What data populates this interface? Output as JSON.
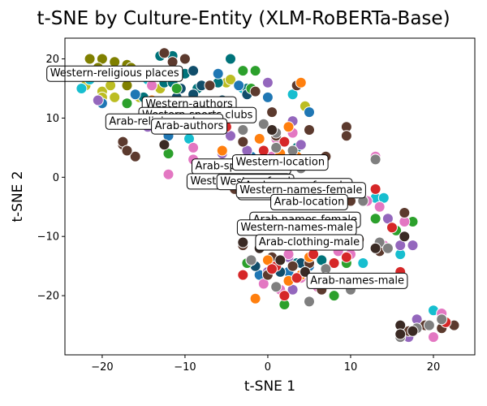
{
  "chart_data": {
    "type": "scatter",
    "title": "t-SNE by Culture-Entity (XLM-RoBERTa-Base)",
    "xlabel": "t-SNE 1",
    "ylabel": "t-SNE 2",
    "xlim": [
      -24.5,
      25
    ],
    "ylim": [
      -30,
      23.5
    ],
    "xticks": [
      -20,
      -10,
      0,
      10,
      20
    ],
    "yticks": [
      -20,
      -10,
      0,
      10,
      20
    ],
    "grid": false,
    "annotations": [
      {
        "text": "Western-religious places",
        "x": -18.5,
        "y": 17.5
      },
      {
        "text": "Western-authors",
        "x": -9.5,
        "y": 12.3
      },
      {
        "text": "Western-sports clubs",
        "x": -8.5,
        "y": 10.5
      },
      {
        "text": "Arab-religious places",
        "x": -12.5,
        "y": 9.4
      },
      {
        "text": "Arab-authors",
        "x": -9.5,
        "y": 8.6
      },
      {
        "text": "Arab-sports clubs",
        "x": -3.2,
        "y": 1.8
      },
      {
        "text": "Western-location",
        "x": 1.5,
        "y": 2.5
      },
      {
        "text": "Western-beverage",
        "x": -3.5,
        "y": -0.7
      },
      {
        "text": "Western-food",
        "x": -1.5,
        "y": -0.8
      },
      {
        "text": "Arab-names-female",
        "x": 3.5,
        "y": -1.5
      },
      {
        "text": "Arab-beverage",
        "x": 1.5,
        "y": -2.5
      },
      {
        "text": "Western-names-female",
        "x": 4.0,
        "y": -2.2
      },
      {
        "text": "Arab-location",
        "x": 5.0,
        "y": -4.2
      },
      {
        "text": "Arab-names-female",
        "x": 4.5,
        "y": -7.2
      },
      {
        "text": "Western-names-male",
        "x": 3.5,
        "y": -8.5
      },
      {
        "text": "Arab-clothing-male",
        "x": 5.0,
        "y": -11.0
      },
      {
        "text": "Arab-names-male",
        "x": 10.8,
        "y": -17.5
      }
    ],
    "points": [
      {
        "x": -21.5,
        "y": 20,
        "c": "#808000"
      },
      {
        "x": -20,
        "y": 20,
        "c": "#808000"
      },
      {
        "x": -18.5,
        "y": 19.5,
        "c": "#808000"
      },
      {
        "x": -17,
        "y": 19,
        "c": "#808000"
      },
      {
        "x": -16.5,
        "y": 18.5,
        "c": "#808000"
      },
      {
        "x": -20.5,
        "y": 18.5,
        "c": "#808000"
      },
      {
        "x": -17.5,
        "y": 17.5,
        "c": "#808000"
      },
      {
        "x": -19,
        "y": 16.5,
        "c": "#808000"
      },
      {
        "x": -17,
        "y": 15.5,
        "c": "#808000"
      },
      {
        "x": -22,
        "y": 15.5,
        "c": "#bcbd22"
      },
      {
        "x": -20,
        "y": 14.5,
        "c": "#bcbd22"
      },
      {
        "x": -19,
        "y": 15.5,
        "c": "#bcbd22"
      },
      {
        "x": -18.5,
        "y": 13.5,
        "c": "#bcbd22"
      },
      {
        "x": -20,
        "y": 13.5,
        "c": "#bcbd22"
      },
      {
        "x": -15.5,
        "y": 13.5,
        "c": "#bcbd22"
      },
      {
        "x": -13,
        "y": 15,
        "c": "#bcbd22"
      },
      {
        "x": -5,
        "y": 16,
        "c": "#bcbd22"
      },
      {
        "x": 4.5,
        "y": 12,
        "c": "#bcbd22"
      },
      {
        "x": -4.5,
        "y": 16.5,
        "c": "#bcbd22"
      },
      {
        "x": -22.5,
        "y": 15,
        "c": "#17becf"
      },
      {
        "x": -21.5,
        "y": 16.5,
        "c": "#17becf"
      },
      {
        "x": -14.5,
        "y": 16.5,
        "c": "#17becf"
      },
      {
        "x": -9.5,
        "y": 6.5,
        "c": "#17becf"
      },
      {
        "x": -3,
        "y": 15,
        "c": "#17becf"
      },
      {
        "x": 3,
        "y": 14,
        "c": "#17becf"
      },
      {
        "x": 13,
        "y": -3.5,
        "c": "#17becf"
      },
      {
        "x": 14,
        "y": -3.5,
        "c": "#17becf"
      },
      {
        "x": 16,
        "y": -13,
        "c": "#17becf"
      },
      {
        "x": 11.5,
        "y": -14.5,
        "c": "#17becf"
      },
      {
        "x": 20,
        "y": -22.5,
        "c": "#17becf"
      },
      {
        "x": 7,
        "y": -2,
        "c": "#17becf"
      },
      {
        "x": -13,
        "y": 20.5,
        "c": "#00737a"
      },
      {
        "x": -11.5,
        "y": 20.5,
        "c": "#00737a"
      },
      {
        "x": -12.5,
        "y": 16,
        "c": "#00737a"
      },
      {
        "x": -10,
        "y": 17.5,
        "c": "#00737a"
      },
      {
        "x": -11.5,
        "y": 16,
        "c": "#00737a"
      },
      {
        "x": -15,
        "y": 13.5,
        "c": "#00737a"
      },
      {
        "x": -8.5,
        "y": 15,
        "c": "#00737a"
      },
      {
        "x": -6,
        "y": 16,
        "c": "#00737a"
      },
      {
        "x": -2.5,
        "y": 15,
        "c": "#00737a"
      },
      {
        "x": -6.5,
        "y": 10.5,
        "c": "#00737a"
      },
      {
        "x": 3.5,
        "y": 5,
        "c": "#00737a"
      },
      {
        "x": -4.5,
        "y": 20,
        "c": "#00737a"
      },
      {
        "x": 1.5,
        "y": 3,
        "c": "#00737a"
      },
      {
        "x": 3.5,
        "y": -14.5,
        "c": "#00737a"
      },
      {
        "x": 6.5,
        "y": -14,
        "c": "#00737a"
      },
      {
        "x": -20,
        "y": 12.5,
        "c": "#1f77b4"
      },
      {
        "x": -16,
        "y": 14,
        "c": "#1f77b4"
      },
      {
        "x": -6,
        "y": 17.5,
        "c": "#1f77b4"
      },
      {
        "x": -3.5,
        "y": 15.5,
        "c": "#1f77b4"
      },
      {
        "x": 0,
        "y": 13.5,
        "c": "#1f77b4"
      },
      {
        "x": 5,
        "y": 11,
        "c": "#1f77b4"
      },
      {
        "x": -2,
        "y": 3.5,
        "c": "#1f77b4"
      },
      {
        "x": -5.5,
        "y": 11.5,
        "c": "#1f77b4"
      },
      {
        "x": -12,
        "y": 7,
        "c": "#1f77b4"
      },
      {
        "x": -1,
        "y": -16.5,
        "c": "#1f77b4"
      },
      {
        "x": 2.5,
        "y": -16,
        "c": "#1f77b4"
      },
      {
        "x": 5,
        "y": -15,
        "c": "#1f77b4"
      },
      {
        "x": -9,
        "y": 18,
        "c": "#104e6b"
      },
      {
        "x": -10.5,
        "y": 15,
        "c": "#104e6b"
      },
      {
        "x": -8,
        "y": 15.5,
        "c": "#104e6b"
      },
      {
        "x": -9,
        "y": 14,
        "c": "#104e6b"
      },
      {
        "x": -5.5,
        "y": 13,
        "c": "#104e6b"
      },
      {
        "x": -11,
        "y": 13.5,
        "c": "#104e6b"
      },
      {
        "x": -7,
        "y": 12,
        "c": "#104e6b"
      },
      {
        "x": -13,
        "y": 12,
        "c": "#104e6b"
      },
      {
        "x": -2.5,
        "y": 14,
        "c": "#104e6b"
      },
      {
        "x": 1.5,
        "y": -16,
        "c": "#104e6b"
      },
      {
        "x": 4,
        "y": -14.5,
        "c": "#104e6b"
      },
      {
        "x": -1.5,
        "y": -15,
        "c": "#104e6b"
      },
      {
        "x": -17,
        "y": 12.5,
        "c": "#2ca02c"
      },
      {
        "x": -11,
        "y": 15,
        "c": "#2ca02c"
      },
      {
        "x": -7,
        "y": 15.5,
        "c": "#2ca02c"
      },
      {
        "x": -3,
        "y": 18,
        "c": "#2ca02c"
      },
      {
        "x": -1.5,
        "y": 18,
        "c": "#2ca02c"
      },
      {
        "x": -2,
        "y": 15,
        "c": "#2ca02c"
      },
      {
        "x": -8.5,
        "y": 0.5,
        "c": "#2ca02c"
      },
      {
        "x": 17.5,
        "y": -7.5,
        "c": "#2ca02c"
      },
      {
        "x": 15.5,
        "y": -9,
        "c": "#2ca02c"
      },
      {
        "x": 13,
        "y": -7,
        "c": "#2ca02c"
      },
      {
        "x": -2.5,
        "y": -14.5,
        "c": "#2ca02c"
      },
      {
        "x": 8,
        "y": -20,
        "c": "#2ca02c"
      },
      {
        "x": 2,
        "y": -21.5,
        "c": "#2ca02c"
      },
      {
        "x": 9.5,
        "y": -14.5,
        "c": "#2ca02c"
      },
      {
        "x": -12,
        "y": 4,
        "c": "#2ca02c"
      },
      {
        "x": -20.5,
        "y": 13,
        "c": "#9467bd"
      },
      {
        "x": -14.5,
        "y": 8.5,
        "c": "#9467bd"
      },
      {
        "x": -7,
        "y": 8.5,
        "c": "#9467bd"
      },
      {
        "x": -4.5,
        "y": 7,
        "c": "#9467bd"
      },
      {
        "x": -3,
        "y": 6,
        "c": "#9467bd"
      },
      {
        "x": 0,
        "y": 3.5,
        "c": "#9467bd"
      },
      {
        "x": -5.5,
        "y": 4,
        "c": "#9467bd"
      },
      {
        "x": -2.5,
        "y": 4.5,
        "c": "#9467bd"
      },
      {
        "x": 0,
        "y": 16,
        "c": "#9467bd"
      },
      {
        "x": 4,
        "y": 5.5,
        "c": "#9467bd"
      },
      {
        "x": 3,
        "y": 9.5,
        "c": "#9467bd"
      },
      {
        "x": 14.5,
        "y": -7,
        "c": "#9467bd"
      },
      {
        "x": 17.5,
        "y": -11.5,
        "c": "#9467bd"
      },
      {
        "x": 16,
        "y": -11.5,
        "c": "#9467bd"
      },
      {
        "x": 11,
        "y": -2.5,
        "c": "#9467bd"
      },
      {
        "x": 0,
        "y": -16,
        "c": "#9467bd"
      },
      {
        "x": 3,
        "y": -19,
        "c": "#9467bd"
      },
      {
        "x": 18,
        "y": -24,
        "c": "#9467bd"
      },
      {
        "x": 17,
        "y": -27,
        "c": "#9467bd"
      },
      {
        "x": 2.5,
        "y": -13.5,
        "c": "#9467bd"
      },
      {
        "x": 9,
        "y": -9,
        "c": "#9467bd"
      },
      {
        "x": -14,
        "y": 15.5,
        "c": "#e377c2"
      },
      {
        "x": -14.5,
        "y": 11.5,
        "c": "#e377c2"
      },
      {
        "x": -12,
        "y": 0.5,
        "c": "#e377c2"
      },
      {
        "x": -9,
        "y": 5,
        "c": "#e377c2"
      },
      {
        "x": -9,
        "y": 3,
        "c": "#e377c2"
      },
      {
        "x": -6,
        "y": 12.5,
        "c": "#e377c2"
      },
      {
        "x": 1,
        "y": 6.5,
        "c": "#e377c2"
      },
      {
        "x": 0.5,
        "y": 3.5,
        "c": "#e377c2"
      },
      {
        "x": 3,
        "y": 7.5,
        "c": "#e377c2"
      },
      {
        "x": 13,
        "y": 3.5,
        "c": "#e377c2"
      },
      {
        "x": 13.5,
        "y": -5,
        "c": "#e377c2"
      },
      {
        "x": 16.5,
        "y": -7.5,
        "c": "#e377c2"
      },
      {
        "x": 14,
        "y": -11.5,
        "c": "#e377c2"
      },
      {
        "x": 12,
        "y": -4,
        "c": "#e377c2"
      },
      {
        "x": -0.5,
        "y": -18,
        "c": "#e377c2"
      },
      {
        "x": 1.5,
        "y": -19,
        "c": "#e377c2"
      },
      {
        "x": 4,
        "y": -17,
        "c": "#e377c2"
      },
      {
        "x": 6,
        "y": -18.5,
        "c": "#e377c2"
      },
      {
        "x": 8.5,
        "y": -12.5,
        "c": "#e377c2"
      },
      {
        "x": 20,
        "y": -27,
        "c": "#e377c2"
      },
      {
        "x": 21,
        "y": -23,
        "c": "#e377c2"
      },
      {
        "x": 10,
        "y": -13,
        "c": "#e377c2"
      },
      {
        "x": 2.5,
        "y": -13,
        "c": "#e377c2"
      },
      {
        "x": -11.5,
        "y": 19.5,
        "c": "#5c3a2e"
      },
      {
        "x": -12.5,
        "y": 21,
        "c": "#5c3a2e"
      },
      {
        "x": -10,
        "y": 20,
        "c": "#5c3a2e"
      },
      {
        "x": -7,
        "y": 15.5,
        "c": "#5c3a2e"
      },
      {
        "x": -1.5,
        "y": 14.5,
        "c": "#5c3a2e"
      },
      {
        "x": 0.5,
        "y": 11,
        "c": "#5c3a2e"
      },
      {
        "x": 3.5,
        "y": 15.5,
        "c": "#5c3a2e"
      },
      {
        "x": -16,
        "y": 3.5,
        "c": "#5c3a2e"
      },
      {
        "x": -17.5,
        "y": 5.5,
        "c": "#5c3a2e"
      },
      {
        "x": -17.5,
        "y": 6,
        "c": "#5c3a2e"
      },
      {
        "x": -17,
        "y": 4.5,
        "c": "#5c3a2e"
      },
      {
        "x": -3,
        "y": 6,
        "c": "#5c3a2e"
      },
      {
        "x": 1,
        "y": 7,
        "c": "#5c3a2e"
      },
      {
        "x": 5,
        "y": 8,
        "c": "#5c3a2e"
      },
      {
        "x": 7,
        "y": 3.5,
        "c": "#5c3a2e"
      },
      {
        "x": 9.5,
        "y": 8.5,
        "c": "#5c3a2e"
      },
      {
        "x": 9.5,
        "y": 7,
        "c": "#5c3a2e"
      },
      {
        "x": 10,
        "y": -4,
        "c": "#5c3a2e"
      },
      {
        "x": 11,
        "y": -10.5,
        "c": "#5c3a2e"
      },
      {
        "x": 13.5,
        "y": -12.5,
        "c": "#5c3a2e"
      },
      {
        "x": 16.5,
        "y": -6,
        "c": "#5c3a2e"
      },
      {
        "x": -3,
        "y": -11.5,
        "c": "#5c3a2e"
      },
      {
        "x": -2,
        "y": -14,
        "c": "#5c3a2e"
      },
      {
        "x": 0,
        "y": -16.5,
        "c": "#5c3a2e"
      },
      {
        "x": 3,
        "y": -15,
        "c": "#5c3a2e"
      },
      {
        "x": 5,
        "y": -14.5,
        "c": "#5c3a2e"
      },
      {
        "x": 6.5,
        "y": -19,
        "c": "#5c3a2e"
      },
      {
        "x": 19,
        "y": -25,
        "c": "#5c3a2e"
      },
      {
        "x": 21,
        "y": -25.5,
        "c": "#5c3a2e"
      },
      {
        "x": 22.5,
        "y": -25,
        "c": "#5c3a2e"
      },
      {
        "x": 17,
        "y": -26,
        "c": "#5c3a2e"
      },
      {
        "x": 0.5,
        "y": -13.5,
        "c": "#5c3a2e"
      },
      {
        "x": -4,
        "y": -2,
        "c": "#5c3a2e"
      },
      {
        "x": 2,
        "y": -3,
        "c": "#5c3a2e"
      },
      {
        "x": -14,
        "y": 13,
        "c": "#ff7f0e"
      },
      {
        "x": -5.5,
        "y": 4.5,
        "c": "#ff7f0e"
      },
      {
        "x": -8.5,
        "y": 2,
        "c": "#ff7f0e"
      },
      {
        "x": -1,
        "y": 6.5,
        "c": "#ff7f0e"
      },
      {
        "x": 2.5,
        "y": 8.5,
        "c": "#ff7f0e"
      },
      {
        "x": 3.5,
        "y": 3.5,
        "c": "#ff7f0e"
      },
      {
        "x": 4,
        "y": 16,
        "c": "#ff7f0e"
      },
      {
        "x": -1.5,
        "y": -20.5,
        "c": "#ff7f0e"
      },
      {
        "x": 0,
        "y": -14,
        "c": "#ff7f0e"
      },
      {
        "x": 5,
        "y": -13.5,
        "c": "#ff7f0e"
      },
      {
        "x": 4,
        "y": -16.5,
        "c": "#ff7f0e"
      },
      {
        "x": 2.5,
        "y": -17.5,
        "c": "#ff7f0e"
      },
      {
        "x": 6,
        "y": -3,
        "c": "#ff7f0e"
      },
      {
        "x": 1.5,
        "y": 4,
        "c": "#ff7f0e"
      },
      {
        "x": -5,
        "y": 8.5,
        "c": "#d62728"
      },
      {
        "x": -0.5,
        "y": 4.5,
        "c": "#d62728"
      },
      {
        "x": 2,
        "y": 6,
        "c": "#d62728"
      },
      {
        "x": -3,
        "y": -16.5,
        "c": "#d62728"
      },
      {
        "x": 1,
        "y": -15,
        "c": "#d62728"
      },
      {
        "x": 2,
        "y": -20,
        "c": "#d62728"
      },
      {
        "x": 3.5,
        "y": -17,
        "c": "#d62728"
      },
      {
        "x": 9.5,
        "y": -13.5,
        "c": "#d62728"
      },
      {
        "x": 16,
        "y": -16,
        "c": "#d62728"
      },
      {
        "x": 15,
        "y": -8.5,
        "c": "#d62728"
      },
      {
        "x": 8,
        "y": -14.5,
        "c": "#d62728"
      },
      {
        "x": 5.5,
        "y": -13,
        "c": "#d62728"
      },
      {
        "x": 21.5,
        "y": -24.5,
        "c": "#d62728"
      },
      {
        "x": 0.5,
        "y": -15.5,
        "c": "#d62728"
      },
      {
        "x": 13,
        "y": -2,
        "c": "#d62728"
      },
      {
        "x": -3,
        "y": 8,
        "c": "#7f7f7f"
      },
      {
        "x": -0.5,
        "y": 9,
        "c": "#7f7f7f"
      },
      {
        "x": 1,
        "y": 5,
        "c": "#7f7f7f"
      },
      {
        "x": 3,
        "y": 4.5,
        "c": "#7f7f7f"
      },
      {
        "x": 4,
        "y": 1.5,
        "c": "#7f7f7f"
      },
      {
        "x": 2,
        "y": -1,
        "c": "#7f7f7f"
      },
      {
        "x": 1,
        "y": 7.5,
        "c": "#7f7f7f"
      },
      {
        "x": 0,
        "y": 2,
        "c": "#7f7f7f"
      },
      {
        "x": 13.5,
        "y": -11,
        "c": "#7f7f7f"
      },
      {
        "x": 14.5,
        "y": -12,
        "c": "#7f7f7f"
      },
      {
        "x": 11.5,
        "y": -4,
        "c": "#7f7f7f"
      },
      {
        "x": 7,
        "y": -15.5,
        "c": "#7f7f7f"
      },
      {
        "x": 5,
        "y": -21,
        "c": "#7f7f7f"
      },
      {
        "x": 10,
        "y": -19,
        "c": "#7f7f7f"
      },
      {
        "x": 1,
        "y": -18.5,
        "c": "#7f7f7f"
      },
      {
        "x": 18,
        "y": -25.5,
        "c": "#7f7f7f"
      },
      {
        "x": 19.5,
        "y": -25,
        "c": "#7f7f7f"
      },
      {
        "x": 21,
        "y": -24,
        "c": "#7f7f7f"
      },
      {
        "x": 16,
        "y": -27,
        "c": "#7f7f7f"
      },
      {
        "x": 13,
        "y": 3,
        "c": "#7f7f7f"
      },
      {
        "x": -2,
        "y": -14,
        "c": "#7f7f7f"
      },
      {
        "x": 8,
        "y": -7,
        "c": "#7f7f7f"
      },
      {
        "x": -12.5,
        "y": 5.5,
        "c": "#3a2a24"
      },
      {
        "x": -5.5,
        "y": 10,
        "c": "#3a2a24"
      },
      {
        "x": -2.5,
        "y": 10,
        "c": "#3a2a24"
      },
      {
        "x": 0.5,
        "y": 8,
        "c": "#3a2a24"
      },
      {
        "x": 2.5,
        "y": 2.5,
        "c": "#3a2a24"
      },
      {
        "x": -3,
        "y": -11,
        "c": "#3a2a24"
      },
      {
        "x": 1.5,
        "y": -14,
        "c": "#3a2a24"
      },
      {
        "x": 4.5,
        "y": -16,
        "c": "#3a2a24"
      },
      {
        "x": 7,
        "y": -17,
        "c": "#3a2a24"
      },
      {
        "x": 16.5,
        "y": -10,
        "c": "#3a2a24"
      },
      {
        "x": 13,
        "y": -12,
        "c": "#3a2a24"
      },
      {
        "x": 16,
        "y": -25,
        "c": "#3a2a24"
      },
      {
        "x": 17.5,
        "y": -26,
        "c": "#3a2a24"
      },
      {
        "x": 16,
        "y": -26.5,
        "c": "#3a2a24"
      },
      {
        "x": -1,
        "y": -12,
        "c": "#3a2a24"
      },
      {
        "x": 7,
        "y": -3,
        "c": "#3a2a24"
      }
    ]
  }
}
